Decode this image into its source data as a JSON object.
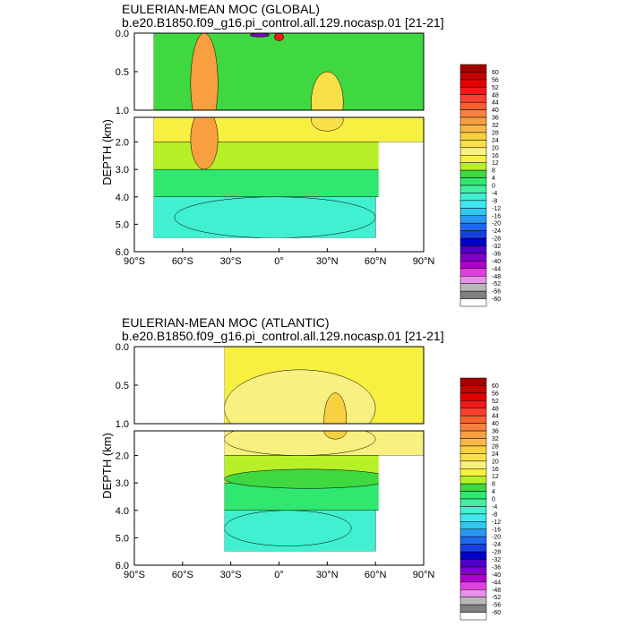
{
  "chart_data": [
    {
      "type": "heatmap",
      "title": "EULERIAN-MEAN MOC (GLOBAL)",
      "subtitle": "b.e20.B1850.f09_g16.pi_control.all.129.nocasp.01 [21-21]",
      "ylabel": "DEPTH (km)",
      "xlabel": "",
      "xlim": [
        -90,
        90
      ],
      "ylim": [
        6.0,
        0.0
      ],
      "y_break": [
        1.0,
        1.1
      ],
      "x_ticks": [
        "90°S",
        "60°S",
        "30°S",
        "0°",
        "30°N",
        "60°N",
        "90°N"
      ],
      "y_ticks_upper": [
        "0.0",
        "0.5",
        "1.0"
      ],
      "y_ticks_lower": [
        "2.0",
        "3.0",
        "4.0",
        "5.0",
        "6.0"
      ],
      "ocean_extent_lat": [
        -78,
        90
      ],
      "colorbar_levels": [
        "60",
        "56",
        "52",
        "48",
        "44",
        "40",
        "36",
        "32",
        "28",
        "24",
        "20",
        "16",
        "12",
        "8",
        "4",
        "0",
        "-4",
        "-8",
        "-12",
        "-16",
        "-20",
        "-24",
        "-28",
        "-32",
        "-36",
        "-40",
        "-44",
        "-48",
        "-52",
        "-56",
        "-60"
      ],
      "features": [
        {
          "lat_range": [
            -55,
            -38
          ],
          "depth_range": [
            0.0,
            3.0
          ],
          "value": 32
        },
        {
          "lat_range": [
            -18,
            -6
          ],
          "depth_range": [
            0.0,
            0.05
          ],
          "value": -40
        },
        {
          "lat_range": [
            -3,
            3
          ],
          "depth_range": [
            0.0,
            0.1
          ],
          "value": 48
        },
        {
          "lat_range": [
            20,
            40
          ],
          "depth_range": [
            0.5,
            1.6
          ],
          "value": 20
        },
        {
          "lat_range": [
            -65,
            60
          ],
          "depth_range": [
            4.0,
            5.5
          ],
          "value": -6
        }
      ]
    },
    {
      "type": "heatmap",
      "title": "EULERIAN-MEAN MOC (ATLANTIC)",
      "subtitle": "b.e20.B1850.f09_g16.pi_control.all.129.nocasp.01 [21-21]",
      "ylabel": "DEPTH (km)",
      "xlabel": "",
      "xlim": [
        -90,
        90
      ],
      "ylim": [
        6.0,
        0.0
      ],
      "y_break": [
        1.0,
        1.1
      ],
      "x_ticks": [
        "90°S",
        "60°S",
        "30°S",
        "0°",
        "30°N",
        "60°N",
        "90°N"
      ],
      "y_ticks_upper": [
        "0.0",
        "0.5",
        "1.0"
      ],
      "y_ticks_lower": [
        "2.0",
        "3.0",
        "4.0",
        "5.0",
        "6.0"
      ],
      "ocean_extent_lat": [
        -34,
        90
      ],
      "colorbar_levels": [
        "60",
        "56",
        "52",
        "48",
        "44",
        "40",
        "36",
        "32",
        "28",
        "24",
        "20",
        "16",
        "12",
        "8",
        "4",
        "0",
        "-4",
        "-8",
        "-12",
        "-16",
        "-20",
        "-24",
        "-28",
        "-32",
        "-36",
        "-40",
        "-44",
        "-48",
        "-52",
        "-56",
        "-60"
      ],
      "features": [
        {
          "lat_range": [
            -34,
            60
          ],
          "depth_range": [
            0.3,
            2.0
          ],
          "value": 16
        },
        {
          "lat_range": [
            28,
            42
          ],
          "depth_range": [
            0.6,
            1.4
          ],
          "value": 24
        },
        {
          "lat_range": [
            -34,
            70
          ],
          "depth_range": [
            2.5,
            3.2
          ],
          "value": 4
        },
        {
          "lat_range": [
            -34,
            45
          ],
          "depth_range": [
            4.0,
            5.3
          ],
          "value": -6
        }
      ]
    }
  ]
}
